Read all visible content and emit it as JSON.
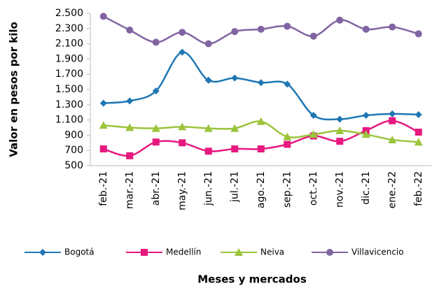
{
  "chart_data": {
    "type": "line",
    "x_label": "Meses  y mercados",
    "y_label": "Valor en pesos por kilo",
    "categories": [
      "feb.-21",
      "mar.-21",
      "abr.-21",
      "may.-21",
      "jun.-21",
      "jul.-21",
      "ago.-21",
      "sep.-21",
      "oct.-21",
      "nov.-21",
      "dic.-21",
      "ene.-22",
      "feb.-22"
    ],
    "series": [
      {
        "name": "Bogotá",
        "color": "#1f77b4",
        "marker": "diamond",
        "values": [
          1320,
          1350,
          1480,
          1990,
          1620,
          1650,
          1590,
          1570,
          1160,
          1110,
          1160,
          1180,
          1170
        ]
      },
      {
        "name": "Medellín",
        "color": "#e6197f",
        "marker": "square",
        "values": [
          720,
          630,
          810,
          800,
          690,
          720,
          720,
          780,
          890,
          820,
          960,
          1090,
          940
        ]
      },
      {
        "name": "Neiva",
        "color": "#9bc43b",
        "marker": "triangle",
        "values": [
          1030,
          1000,
          990,
          1010,
          990,
          990,
          1080,
          880,
          910,
          960,
          910,
          840,
          810
        ]
      },
      {
        "name": "Villavicencio",
        "color": "#8064a2",
        "marker": "circle",
        "values": [
          2460,
          2280,
          2120,
          2250,
          2100,
          2260,
          2290,
          2330,
          2200,
          2410,
          2290,
          2320,
          2230
        ]
      }
    ],
    "ylim": [
      500,
      2500
    ],
    "yticks": [
      500,
      700,
      900,
      {
        "value": 1100,
        "label": "1.100"
      },
      {
        "value": 1300,
        "label": "1.300"
      },
      {
        "value": 1500,
        "label": "1.500"
      },
      {
        "value": 1700,
        "label": "1.700"
      },
      {
        "value": 1900,
        "label": "1.900"
      },
      {
        "value": 2100,
        "label": "2.100"
      },
      {
        "value": 2300,
        "label": "2.300"
      },
      {
        "value": 2500,
        "label": "2.500"
      }
    ],
    "grid": false,
    "legend": "bottom"
  }
}
